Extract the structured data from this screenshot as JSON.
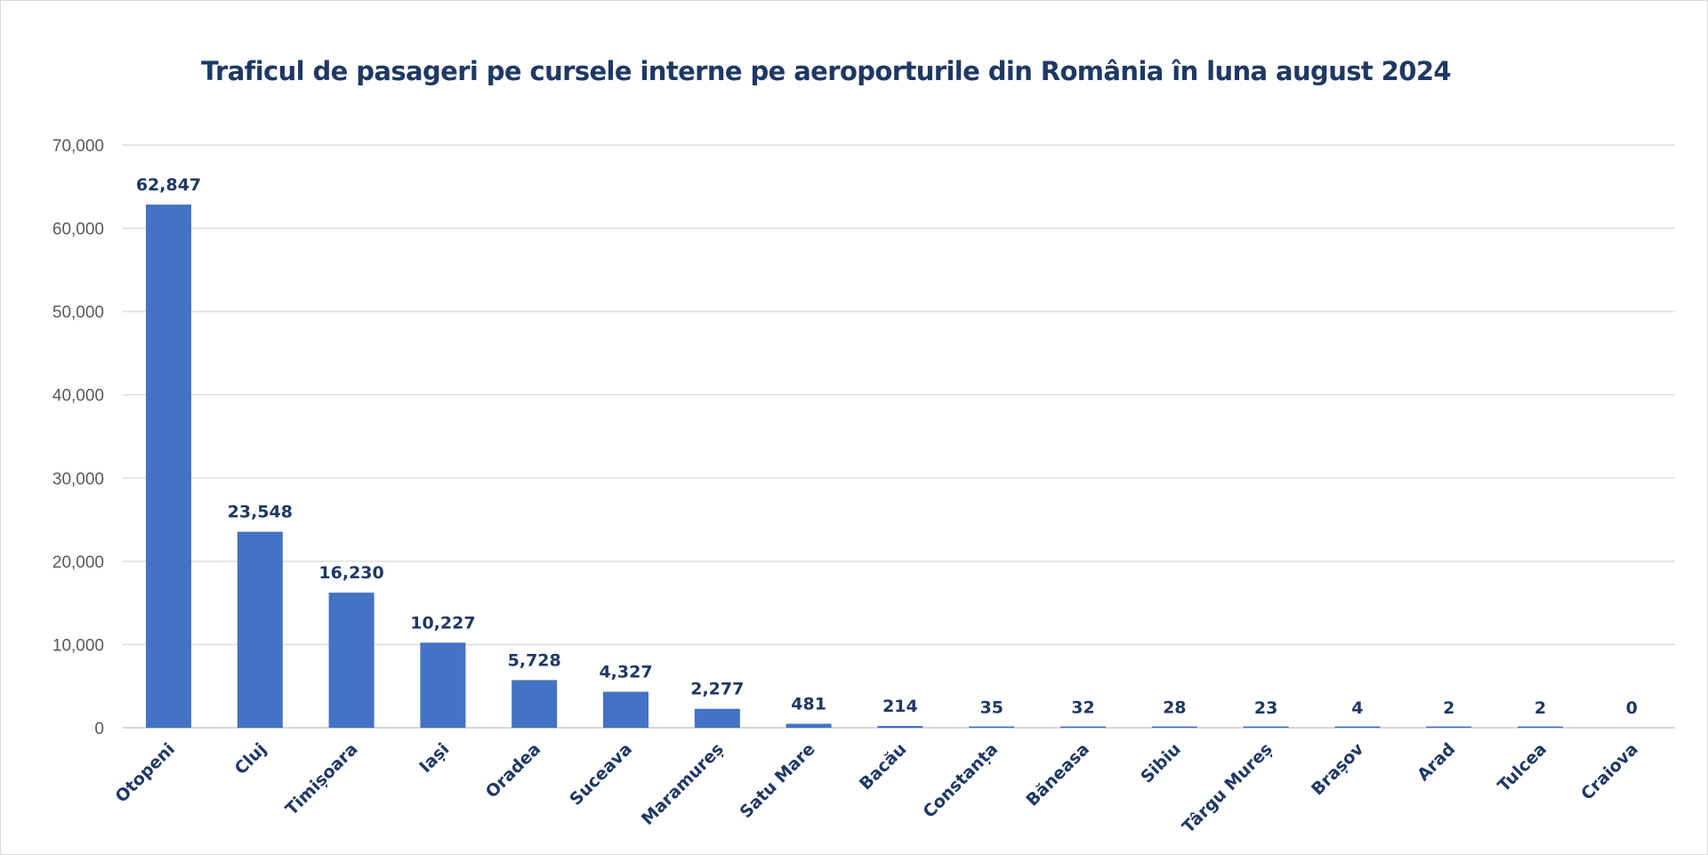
{
  "chart_data": {
    "type": "bar",
    "title": "Traficul de pasageri pe cursele interne pe aeroporturile din România în luna august 2024",
    "xlabel": "",
    "ylabel": "",
    "ylim": [
      0,
      70000
    ],
    "yticks": [
      0,
      10000,
      20000,
      30000,
      40000,
      50000,
      60000,
      70000
    ],
    "ytick_labels": [
      "0",
      "10,000",
      "20,000",
      "30,000",
      "40,000",
      "50,000",
      "60,000",
      "70,000"
    ],
    "grid": true,
    "legend": "none",
    "bar_color": "#4472c4",
    "label_color": "#1f3864",
    "categories": [
      "Otopeni",
      "Cluj",
      "Timișoara",
      "Iași",
      "Oradea",
      "Suceava",
      "Maramureș",
      "Satu Mare",
      "Bacău",
      "Constanța",
      "Băneasa",
      "Sibiu",
      "Târgu Mureș",
      "Brașov",
      "Arad",
      "Tulcea",
      "Craiova"
    ],
    "values": [
      62847,
      23548,
      16230,
      10227,
      5728,
      4327,
      2277,
      481,
      214,
      35,
      32,
      28,
      23,
      4,
      2,
      2,
      0
    ],
    "value_labels": [
      "62,847",
      "23,548",
      "16,230",
      "10,227",
      "5,728",
      "4,327",
      "2,277",
      "481",
      "214",
      "35",
      "32",
      "28",
      "23",
      "4",
      "2",
      "2",
      "0"
    ]
  }
}
